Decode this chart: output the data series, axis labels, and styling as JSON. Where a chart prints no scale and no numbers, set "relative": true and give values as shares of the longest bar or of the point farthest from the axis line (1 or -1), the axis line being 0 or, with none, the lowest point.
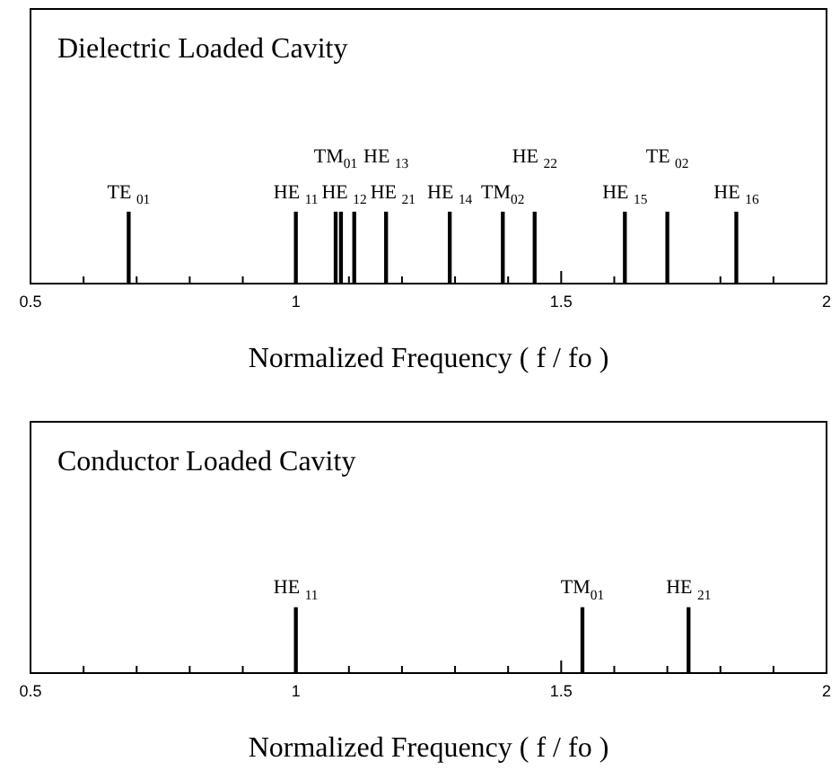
{
  "chart_data": [
    {
      "type": "bar",
      "title": "Dielectric Loaded Cavity",
      "xlabel": "Normalized Frequency ( f / fo )",
      "relative": true,
      "series": [
        {
          "name": "TE $_{01}$",
          "color": "#000000",
          "x": [
            0.685
          ],
          "values": [
            1
          ]
        },
        {
          "name": "HE $_{11}$",
          "color": "#000000",
          "x": [
            1.0
          ],
          "values": [
            1
          ]
        },
        {
          "name": "TM$_{01}$",
          "color": "#000000",
          "x": [
            1.075
          ],
          "values": [
            1
          ]
        },
        {
          "name": "HE $_{12}$",
          "color": "#000000",
          "x": [
            1.085
          ],
          "values": [
            1
          ]
        },
        {
          "name": "HE $_{21}$",
          "color": "#000000",
          "x": [
            1.11
          ],
          "values": [
            1
          ]
        },
        {
          "name": "HE $_{13}$",
          "color": "#000000",
          "x": [
            1.17
          ],
          "values": [
            1
          ]
        },
        {
          "name": "HE $_{14}$",
          "color": "#000000",
          "x": [
            1.29
          ],
          "values": [
            1
          ]
        },
        {
          "name": "TM$_{02}$",
          "color": "#000000",
          "x": [
            1.39
          ],
          "values": [
            1
          ]
        },
        {
          "name": "HE $_{22}$",
          "color": "#000000",
          "x": [
            1.45
          ],
          "values": [
            1
          ]
        },
        {
          "name": "HE $_{15}$",
          "color": "#000000",
          "x": [
            1.62
          ],
          "values": [
            1
          ]
        },
        {
          "name": "TE $_{02}$",
          "color": "#000000",
          "x": [
            1.7
          ],
          "values": [
            1
          ]
        },
        {
          "name": "HE $_{16}$",
          "color": "#000000",
          "x": [
            1.83
          ],
          "values": [
            1
          ]
        }
      ],
      "xlim": [
        0.5,
        2
      ],
      "xticks": [
        0.5,
        {
          "value": 0.6,
          "label": null
        },
        {
          "value": 0.7,
          "label": null
        },
        {
          "value": 0.8,
          "label": null
        },
        {
          "value": 0.9,
          "label": null
        },
        1,
        {
          "value": 1.1,
          "label": null
        },
        {
          "value": 1.2,
          "label": null
        },
        {
          "value": 1.3,
          "label": null
        },
        {
          "value": 1.4,
          "label": null
        },
        1.5,
        {
          "value": 1.6,
          "label": null
        },
        {
          "value": 1.7,
          "label": null
        },
        {
          "value": 1.8,
          "label": null
        },
        {
          "value": 1.9,
          "label": null
        },
        2
      ],
      "tick_labels": "x"
    },
    {
      "type": "bar",
      "title": "Conductor Loaded Cavity",
      "xlabel": "Normalized Frequency ( f / fo )",
      "relative": true,
      "series": [
        {
          "name": "HE $_{11}$",
          "color": "#000000",
          "x": [
            1.0
          ],
          "values": [
            1
          ]
        },
        {
          "name": "TM$_{01}$",
          "color": "#000000",
          "x": [
            1.54
          ],
          "values": [
            1
          ]
        },
        {
          "name": "HE $_{21}$",
          "color": "#000000",
          "x": [
            1.74
          ],
          "values": [
            1
          ]
        }
      ],
      "xlim": [
        0.5,
        2
      ],
      "xticks": [
        0.5,
        {
          "value": 0.6,
          "label": null
        },
        {
          "value": 0.7,
          "label": null
        },
        {
          "value": 0.8,
          "label": null
        },
        {
          "value": 0.9,
          "label": null
        },
        1,
        {
          "value": 1.1,
          "label": null
        },
        {
          "value": 1.2,
          "label": null
        },
        {
          "value": 1.3,
          "label": null
        },
        {
          "value": 1.4,
          "label": null
        },
        1.5,
        {
          "value": 1.6,
          "label": null
        },
        {
          "value": 1.7,
          "label": null
        },
        {
          "value": 1.8,
          "label": null
        },
        {
          "value": 1.9,
          "label": null
        },
        2
      ],
      "tick_labels": "x"
    }
  ]
}
